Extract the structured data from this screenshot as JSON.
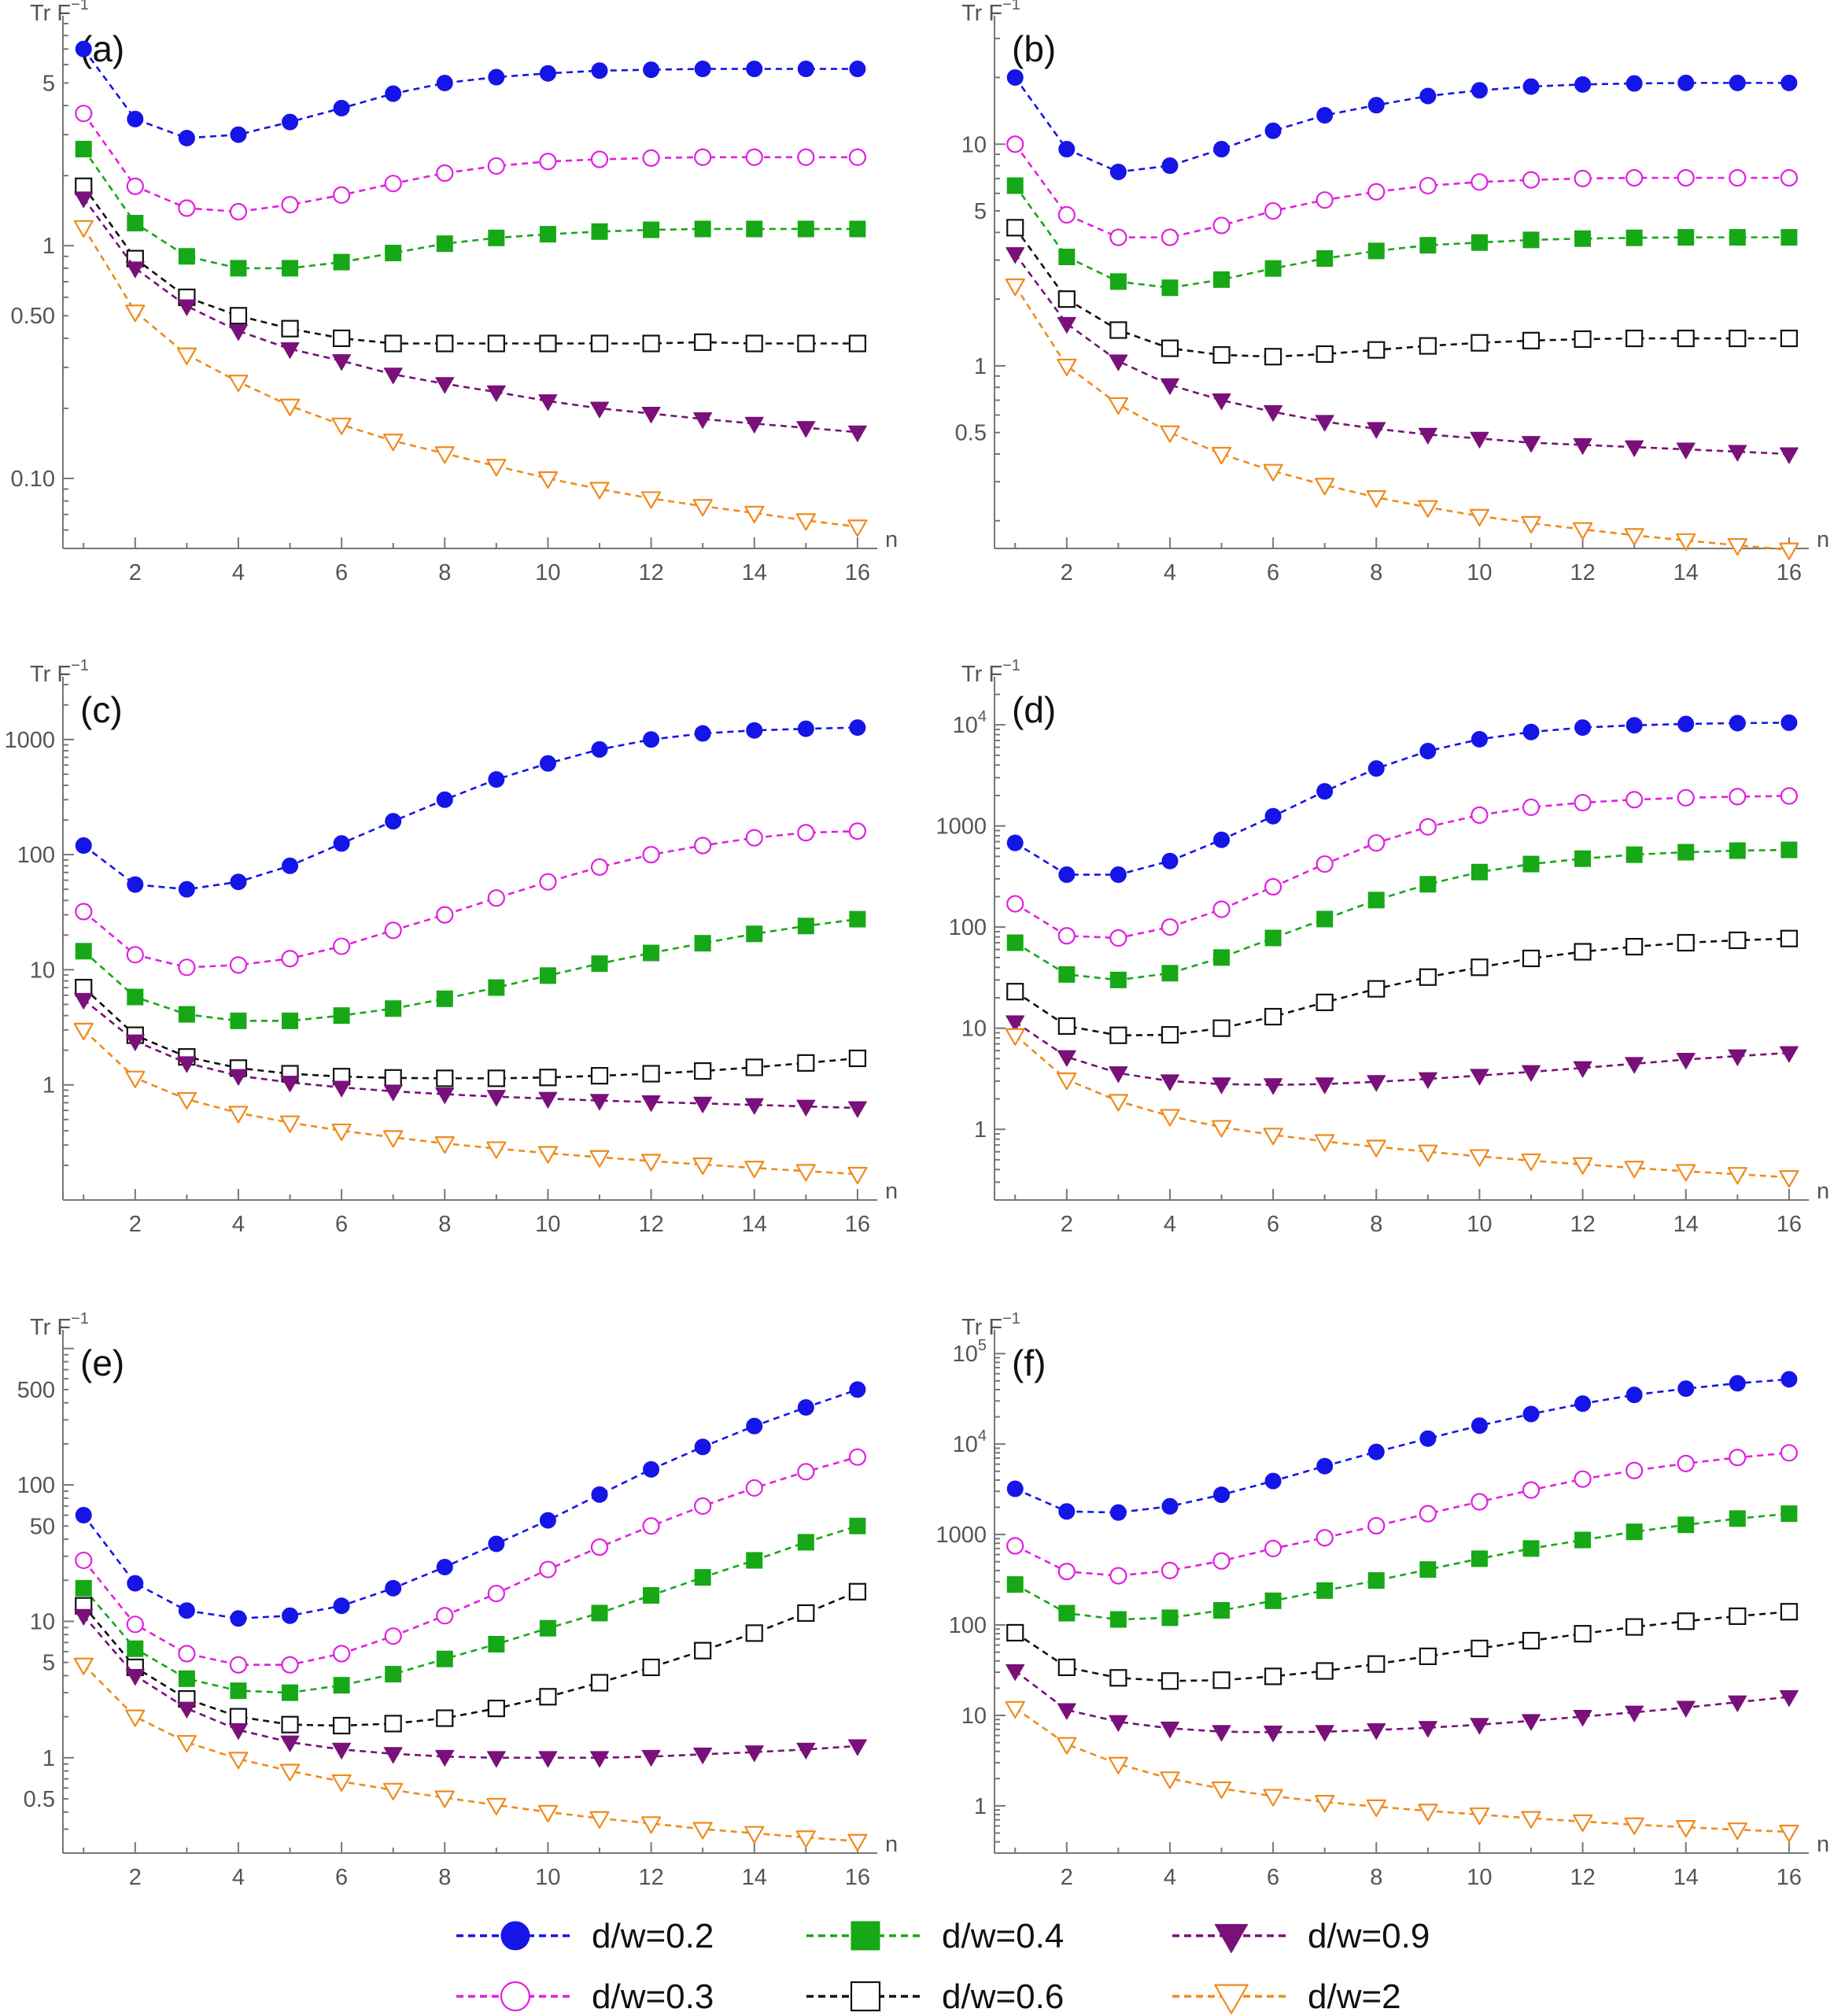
{
  "chart_data": [
    {
      "type": "line",
      "panel": "(a)",
      "ylabel": "Tr F",
      "ylabel_superscript": "−1",
      "xlabel": "n",
      "yscale": "log",
      "ylim": [
        0.05,
        9
      ],
      "xlim": [
        0.6,
        16.2
      ],
      "xticks": [
        2,
        4,
        6,
        8,
        10,
        12,
        14,
        16
      ],
      "yticks": [
        {
          "value": 5,
          "label": "5"
        },
        {
          "value": 1,
          "label": "1"
        },
        {
          "value": 0.5,
          "label": "0.50"
        },
        {
          "value": 0.1,
          "label": "0.10"
        }
      ],
      "series": [
        {
          "key": "d02",
          "values": [
            7.0,
            3.5,
            2.9,
            3.0,
            3.4,
            3.9,
            4.5,
            5.0,
            5.3,
            5.5,
            5.65,
            5.7,
            5.75,
            5.75,
            5.75,
            5.75
          ]
        },
        {
          "key": "d03",
          "values": [
            3.7,
            1.8,
            1.45,
            1.4,
            1.5,
            1.65,
            1.85,
            2.05,
            2.2,
            2.3,
            2.35,
            2.38,
            2.4,
            2.4,
            2.4,
            2.4
          ]
        },
        {
          "key": "d04",
          "values": [
            2.6,
            1.25,
            0.9,
            0.8,
            0.8,
            0.85,
            0.93,
            1.02,
            1.08,
            1.12,
            1.15,
            1.17,
            1.18,
            1.18,
            1.18,
            1.18
          ]
        },
        {
          "key": "d06",
          "values": [
            1.8,
            0.88,
            0.6,
            0.5,
            0.44,
            0.4,
            0.38,
            0.38,
            0.38,
            0.38,
            0.38,
            0.38,
            0.385,
            0.38,
            0.38,
            0.38
          ]
        },
        {
          "key": "d09",
          "values": [
            1.6,
            0.8,
            0.55,
            0.43,
            0.36,
            0.32,
            0.28,
            0.255,
            0.235,
            0.215,
            0.2,
            0.19,
            0.18,
            0.172,
            0.165,
            0.158
          ]
        },
        {
          "key": "d2",
          "values": [
            1.2,
            0.52,
            0.34,
            0.26,
            0.205,
            0.17,
            0.145,
            0.128,
            0.113,
            0.1,
            0.09,
            0.082,
            0.076,
            0.071,
            0.066,
            0.062
          ]
        }
      ]
    },
    {
      "type": "line",
      "panel": "(b)",
      "ylabel": "Tr F",
      "ylabel_superscript": "−1",
      "xlabel": "n",
      "yscale": "log",
      "ylim": [
        0.15,
        35
      ],
      "xlim": [
        0.6,
        16.2
      ],
      "xticks": [
        2,
        4,
        6,
        8,
        10,
        12,
        14,
        16
      ],
      "yticks": [
        {
          "value": 10,
          "label": "10"
        },
        {
          "value": 5,
          "label": "5"
        },
        {
          "value": 1,
          "label": "1"
        },
        {
          "value": 0.5,
          "label": "0.5"
        }
      ],
      "series": [
        {
          "key": "d02",
          "values": [
            20,
            9.5,
            7.5,
            8,
            9.5,
            11.5,
            13.5,
            15,
            16.5,
            17.5,
            18.2,
            18.6,
            18.8,
            18.9,
            18.9,
            18.9
          ]
        },
        {
          "key": "d03",
          "values": [
            10,
            4.8,
            3.8,
            3.8,
            4.3,
            5,
            5.6,
            6.1,
            6.5,
            6.75,
            6.9,
            7.0,
            7.05,
            7.05,
            7.05,
            7.05
          ]
        },
        {
          "key": "d04",
          "values": [
            6.5,
            3.1,
            2.4,
            2.25,
            2.45,
            2.75,
            3.05,
            3.3,
            3.5,
            3.6,
            3.7,
            3.75,
            3.78,
            3.8,
            3.8,
            3.8
          ]
        },
        {
          "key": "d06",
          "values": [
            4.2,
            2.0,
            1.45,
            1.2,
            1.12,
            1.1,
            1.13,
            1.18,
            1.23,
            1.27,
            1.3,
            1.32,
            1.33,
            1.33,
            1.33,
            1.33
          ]
        },
        {
          "key": "d09",
          "values": [
            3.2,
            1.55,
            1.05,
            0.82,
            0.7,
            0.62,
            0.56,
            0.52,
            0.49,
            0.47,
            0.45,
            0.44,
            0.43,
            0.42,
            0.41,
            0.4
          ]
        },
        {
          "key": "d2",
          "values": [
            2.3,
            1.0,
            0.67,
            0.5,
            0.4,
            0.335,
            0.29,
            0.255,
            0.23,
            0.21,
            0.195,
            0.183,
            0.172,
            0.163,
            0.155,
            0.148
          ]
        }
      ]
    },
    {
      "type": "line",
      "panel": "(c)",
      "ylabel": "Tr F",
      "ylabel_superscript": "−1",
      "xlabel": "n",
      "yscale": "log",
      "ylim": [
        0.1,
        3000
      ],
      "xlim": [
        0.6,
        16.2
      ],
      "xticks": [
        2,
        4,
        6,
        8,
        10,
        12,
        14,
        16
      ],
      "yticks": [
        {
          "value": 1000,
          "label": "1000"
        },
        {
          "value": 100,
          "label": "100"
        },
        {
          "value": 10,
          "label": "10"
        },
        {
          "value": 1,
          "label": "1"
        }
      ],
      "series": [
        {
          "key": "d02",
          "values": [
            120,
            55,
            50,
            58,
            80,
            125,
            195,
            300,
            450,
            620,
            820,
            1000,
            1130,
            1200,
            1240,
            1270
          ]
        },
        {
          "key": "d03",
          "values": [
            32,
            13.5,
            10.5,
            11,
            12.5,
            16,
            22,
            30,
            42,
            58,
            78,
            100,
            120,
            140,
            155,
            160
          ]
        },
        {
          "key": "d04",
          "values": [
            14.5,
            5.8,
            4.1,
            3.6,
            3.6,
            4.0,
            4.6,
            5.6,
            7.0,
            8.9,
            11.3,
            14,
            17,
            20.5,
            24,
            27.5
          ]
        },
        {
          "key": "d06",
          "values": [
            7.0,
            2.7,
            1.75,
            1.4,
            1.25,
            1.18,
            1.15,
            1.14,
            1.14,
            1.16,
            1.2,
            1.25,
            1.32,
            1.42,
            1.55,
            1.7
          ]
        },
        {
          "key": "d09",
          "values": [
            5.5,
            2.4,
            1.55,
            1.2,
            1.05,
            0.95,
            0.88,
            0.83,
            0.79,
            0.76,
            0.73,
            0.71,
            0.69,
            0.67,
            0.65,
            0.63
          ]
        },
        {
          "key": "d2",
          "values": [
            3.0,
            1.15,
            0.75,
            0.57,
            0.47,
            0.4,
            0.35,
            0.31,
            0.28,
            0.255,
            0.235,
            0.218,
            0.203,
            0.19,
            0.178,
            0.168
          ]
        }
      ]
    },
    {
      "type": "line",
      "panel": "(d)",
      "ylabel": "Tr F",
      "ylabel_superscript": "−1",
      "xlabel": "n",
      "yscale": "log",
      "ylim": [
        0.2,
        25000
      ],
      "xlim": [
        0.6,
        16.2
      ],
      "xticks": [
        2,
        4,
        6,
        8,
        10,
        12,
        14,
        16
      ],
      "yticks": [
        {
          "value": 10000,
          "label": "10",
          "exp": "4"
        },
        {
          "value": 1000,
          "label": "1000"
        },
        {
          "value": 100,
          "label": "100"
        },
        {
          "value": 10,
          "label": "10"
        },
        {
          "value": 1,
          "label": "1"
        }
      ],
      "series": [
        {
          "key": "d02",
          "values": [
            680,
            330,
            330,
            450,
            730,
            1250,
            2200,
            3700,
            5500,
            7200,
            8500,
            9400,
            9900,
            10200,
            10400,
            10500
          ]
        },
        {
          "key": "d03",
          "values": [
            170,
            82,
            78,
            100,
            150,
            250,
            420,
            680,
            980,
            1280,
            1530,
            1700,
            1820,
            1900,
            1950,
            1980
          ]
        },
        {
          "key": "d04",
          "values": [
            70,
            34,
            30,
            35,
            50,
            78,
            120,
            185,
            265,
            350,
            420,
            475,
            520,
            550,
            570,
            580
          ]
        },
        {
          "key": "d06",
          "values": [
            23,
            10.5,
            8.5,
            8.6,
            10,
            13,
            18,
            24.5,
            32,
            40,
            49,
            57,
            64,
            70,
            74,
            77
          ]
        },
        {
          "key": "d09",
          "values": [
            11.5,
            5.2,
            3.6,
            3.0,
            2.8,
            2.75,
            2.8,
            2.95,
            3.15,
            3.4,
            3.7,
            4.05,
            4.45,
            4.9,
            5.3,
            5.7
          ]
        },
        {
          "key": "d2",
          "values": [
            8.5,
            3.1,
            1.9,
            1.35,
            1.05,
            0.88,
            0.76,
            0.67,
            0.6,
            0.54,
            0.49,
            0.45,
            0.415,
            0.385,
            0.36,
            0.335
          ]
        }
      ]
    },
    {
      "type": "line",
      "panel": "(e)",
      "ylabel": "Tr F",
      "ylabel_superscript": "−1",
      "xlabel": "n",
      "yscale": "log",
      "ylim": [
        0.2,
        1200
      ],
      "xlim": [
        0.6,
        16.2
      ],
      "xticks": [
        2,
        4,
        6,
        8,
        10,
        12,
        14,
        16
      ],
      "yticks": [
        {
          "value": 500,
          "label": "500"
        },
        {
          "value": 100,
          "label": "100"
        },
        {
          "value": 50,
          "label": "50"
        },
        {
          "value": 10,
          "label": "10"
        },
        {
          "value": 5,
          "label": "5"
        },
        {
          "value": 1,
          "label": "1"
        },
        {
          "value": 0.5,
          "label": "0.5"
        }
      ],
      "series": [
        {
          "key": "d02",
          "values": [
            60,
            19,
            12,
            10.5,
            11,
            13,
            17.5,
            25,
            37,
            55,
            85,
            130,
            190,
            270,
            370,
            500
          ]
        },
        {
          "key": "d03",
          "values": [
            28,
            9.5,
            5.8,
            4.8,
            4.8,
            5.8,
            7.8,
            11,
            16,
            24,
            35,
            50,
            70,
            95,
            125,
            160
          ]
        },
        {
          "key": "d04",
          "values": [
            17.5,
            6.3,
            3.8,
            3.1,
            3.0,
            3.4,
            4.1,
            5.3,
            6.8,
            8.9,
            11.5,
            15.5,
            21,
            28,
            38,
            50
          ]
        },
        {
          "key": "d06",
          "values": [
            13,
            4.6,
            2.7,
            2.0,
            1.75,
            1.72,
            1.78,
            1.95,
            2.3,
            2.8,
            3.55,
            4.6,
            6.1,
            8.2,
            11.5,
            16.5
          ]
        },
        {
          "key": "d09",
          "values": [
            11,
            4.0,
            2.3,
            1.6,
            1.3,
            1.15,
            1.07,
            1.02,
            1.0,
            1.0,
            1.0,
            1.02,
            1.06,
            1.1,
            1.15,
            1.22
          ]
        },
        {
          "key": "d2",
          "values": [
            4.8,
            2.0,
            1.3,
            0.98,
            0.8,
            0.67,
            0.58,
            0.51,
            0.45,
            0.4,
            0.36,
            0.33,
            0.3,
            0.28,
            0.26,
            0.245
          ]
        }
      ]
    },
    {
      "type": "line",
      "panel": "(f)",
      "ylabel": "Tr F",
      "ylabel_superscript": "−1",
      "xlabel": "n",
      "yscale": "log",
      "ylim": [
        0.3,
        150000
      ],
      "xlim": [
        0.6,
        16.2
      ],
      "xticks": [
        2,
        4,
        6,
        8,
        10,
        12,
        14,
        16
      ],
      "yticks": [
        {
          "value": 100000,
          "label": "10",
          "exp": "5"
        },
        {
          "value": 10000,
          "label": "10",
          "exp": "4"
        },
        {
          "value": 1000,
          "label": "1000"
        },
        {
          "value": 100,
          "label": "100"
        },
        {
          "value": 10,
          "label": "10"
        },
        {
          "value": 1,
          "label": "1"
        }
      ],
      "series": [
        {
          "key": "d02",
          "values": [
            3200,
            1800,
            1750,
            2050,
            2750,
            3900,
            5700,
            8200,
            11500,
            16000,
            21500,
            28000,
            35000,
            41000,
            47000,
            52000
          ]
        },
        {
          "key": "d03",
          "values": [
            750,
            390,
            350,
            400,
            510,
            700,
            920,
            1250,
            1700,
            2300,
            3100,
            4100,
            5100,
            6100,
            7100,
            8000
          ]
        },
        {
          "key": "d04",
          "values": [
            280,
            135,
            115,
            120,
            145,
            185,
            240,
            310,
            410,
            540,
            700,
            870,
            1070,
            1280,
            1500,
            1700
          ]
        },
        {
          "key": "d06",
          "values": [
            82,
            34,
            26,
            24,
            24.5,
            27,
            31,
            37,
            45,
            55,
            67,
            80,
            95,
            110,
            125,
            140
          ]
        },
        {
          "key": "d09",
          "values": [
            31,
            11.5,
            8.5,
            7.2,
            6.6,
            6.5,
            6.6,
            6.9,
            7.3,
            7.9,
            8.7,
            9.7,
            10.8,
            12.2,
            14,
            16
          ]
        },
        {
          "key": "d2",
          "values": [
            12,
            4.8,
            2.9,
            2.0,
            1.55,
            1.28,
            1.1,
            0.98,
            0.88,
            0.8,
            0.73,
            0.67,
            0.62,
            0.58,
            0.545,
            0.515
          ]
        }
      ]
    }
  ],
  "legend": [
    {
      "key": "d02",
      "label": "d/w=0.2",
      "color": "#1515e8",
      "marker": "circle",
      "filled": true
    },
    {
      "key": "d03",
      "label": "d/w=0.3",
      "color": "#e020e0",
      "marker": "circle",
      "filled": false
    },
    {
      "key": "d04",
      "label": "d/w=0.4",
      "color": "#16a816",
      "marker": "square",
      "filled": true
    },
    {
      "key": "d06",
      "label": "d/w=0.6",
      "color": "#111111",
      "marker": "square",
      "filled": false
    },
    {
      "key": "d09",
      "label": "d/w=0.9",
      "color": "#7a107a",
      "marker": "triangle-down",
      "filled": true
    },
    {
      "key": "d2",
      "label": "d/w=2",
      "color": "#f08a1c",
      "marker": "triangle-down",
      "filled": false
    }
  ]
}
